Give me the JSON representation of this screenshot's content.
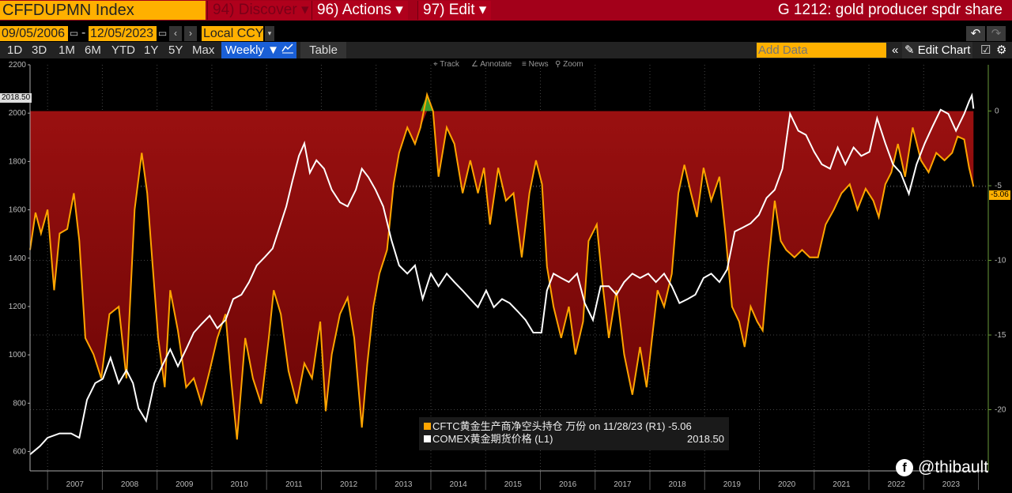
{
  "header": {
    "ticker": "CFFDUPMN Index",
    "discover": "94) Discover",
    "actions": "96) Actions",
    "edit": "97) Edit",
    "caret": "▾",
    "title": "G 1212: gold producer spdr share"
  },
  "controls": {
    "start_date": "09/05/2006",
    "dash": "-",
    "end_date": "12/05/2023",
    "currency": "Local CCY",
    "prev": "‹",
    "next": "›",
    "undo": "↶",
    "redo": "↷"
  },
  "toolbar": {
    "periods": [
      "1D",
      "3D",
      "1M",
      "6M",
      "YTD",
      "1Y",
      "5Y",
      "Max"
    ],
    "frequency": "Weekly ▼",
    "table": "Table",
    "add_data_placeholder": "Add Data",
    "collapse": "«",
    "edit_chart": "Edit Chart"
  },
  "chart_tools": {
    "track": "Track",
    "annotate": "Annotate",
    "news": "News",
    "zoom": "Zoom"
  },
  "watermark": "@thibault",
  "colors": {
    "cftc": "#ffa500",
    "gold": "#ffffff",
    "fill": "#8a0a0a",
    "positive": "#3a9a2a",
    "accent": "#ffb000"
  },
  "chart_data": {
    "type": "line",
    "x_axis": {
      "type": "year",
      "range": [
        2006.68,
        2023.92
      ],
      "tick_labels": [
        "2007",
        "2008",
        "2009",
        "2010",
        "2011",
        "2012",
        "2013",
        "2014",
        "2015",
        "2016",
        "2017",
        "2018",
        "2019",
        "2020",
        "2021",
        "2022",
        "2023"
      ]
    },
    "left_axis": {
      "range": [
        520,
        2200
      ],
      "tick_labels": [
        "2200",
        "2000",
        "1800",
        "1600",
        "1400",
        "1200",
        "1000",
        "800",
        "600"
      ],
      "ticks": [
        2200,
        2000,
        1800,
        1600,
        1400,
        1200,
        1000,
        800,
        600
      ]
    },
    "right_axis": {
      "range": [
        -24.1,
        3.1
      ],
      "tick_labels": [
        "0",
        "-5",
        "-10",
        "-15",
        "-20"
      ],
      "ticks": [
        0,
        -5,
        -10,
        -15,
        -20
      ]
    },
    "legend": {
      "cftc": "CFTC黄金生产商净空头持仓 万份 on 11/28/23 (R1)",
      "cftc_value": "-5.06",
      "gold": "COMEX黄金期货价格 (L1)",
      "gold_value": "2018.50"
    },
    "last_labels": {
      "gold": "2018.50",
      "cftc": "-5.06"
    },
    "series": [
      {
        "name": "CFTC gold producer net short (10k contracts)",
        "axis": "right",
        "points": [
          [
            2006.68,
            -9.3
          ],
          [
            2006.78,
            -6.8
          ],
          [
            2006.88,
            -8.2
          ],
          [
            2007.0,
            -6.6
          ],
          [
            2007.12,
            -12
          ],
          [
            2007.22,
            -8.2
          ],
          [
            2007.36,
            -7.9
          ],
          [
            2007.48,
            -5.5
          ],
          [
            2007.58,
            -8.7
          ],
          [
            2007.69,
            -15.2
          ],
          [
            2007.84,
            -16.3
          ],
          [
            2007.98,
            -17.9
          ],
          [
            2008.13,
            -13.6
          ],
          [
            2008.3,
            -13.1
          ],
          [
            2008.44,
            -17.9
          ],
          [
            2008.59,
            -6.6
          ],
          [
            2008.72,
            -2.8
          ],
          [
            2008.82,
            -5.5
          ],
          [
            2008.92,
            -10.4
          ],
          [
            2009.02,
            -15.2
          ],
          [
            2009.14,
            -18.5
          ],
          [
            2009.24,
            -12
          ],
          [
            2009.38,
            -14.7
          ],
          [
            2009.53,
            -18.5
          ],
          [
            2009.67,
            -17.9
          ],
          [
            2009.81,
            -19.6
          ],
          [
            2009.96,
            -17.4
          ],
          [
            2010.1,
            -15.2
          ],
          [
            2010.25,
            -13.6
          ],
          [
            2010.35,
            -17.9
          ],
          [
            2010.46,
            -22
          ],
          [
            2010.61,
            -15.2
          ],
          [
            2010.75,
            -17.9
          ],
          [
            2010.9,
            -19.6
          ],
          [
            2011.04,
            -15.2
          ],
          [
            2011.13,
            -12
          ],
          [
            2011.26,
            -13.6
          ],
          [
            2011.4,
            -17.4
          ],
          [
            2011.55,
            -19.6
          ],
          [
            2011.69,
            -16.9
          ],
          [
            2011.83,
            -17.9
          ],
          [
            2011.98,
            -14.1
          ],
          [
            2012.08,
            -20.1
          ],
          [
            2012.19,
            -16.3
          ],
          [
            2012.34,
            -13.6
          ],
          [
            2012.48,
            -12.5
          ],
          [
            2012.6,
            -15.2
          ],
          [
            2012.74,
            -21.2
          ],
          [
            2012.84,
            -16.9
          ],
          [
            2012.95,
            -13.1
          ],
          [
            2013.06,
            -10.9
          ],
          [
            2013.2,
            -9.3
          ],
          [
            2013.32,
            -4.9
          ],
          [
            2013.42,
            -2.8
          ],
          [
            2013.57,
            -1.1
          ],
          [
            2013.71,
            -2.2
          ],
          [
            2013.81,
            -1.1
          ],
          [
            2013.93,
            1.1
          ],
          [
            2014.04,
            0
          ],
          [
            2014.14,
            -4.4
          ],
          [
            2014.29,
            -1.1
          ],
          [
            2014.43,
            -2.2
          ],
          [
            2014.58,
            -5.5
          ],
          [
            2014.72,
            -3.3
          ],
          [
            2014.86,
            -5.5
          ],
          [
            2014.97,
            -3.8
          ],
          [
            2015.08,
            -7.6
          ],
          [
            2015.23,
            -3.8
          ],
          [
            2015.37,
            -6
          ],
          [
            2015.51,
            -5.5
          ],
          [
            2015.66,
            -9.8
          ],
          [
            2015.8,
            -5.5
          ],
          [
            2015.92,
            -3.3
          ],
          [
            2016.03,
            -4.9
          ],
          [
            2016.12,
            -10.4
          ],
          [
            2016.24,
            -13.1
          ],
          [
            2016.38,
            -15.2
          ],
          [
            2016.52,
            -13.1
          ],
          [
            2016.64,
            -16.3
          ],
          [
            2016.78,
            -14.1
          ],
          [
            2016.88,
            -8.7
          ],
          [
            2017.03,
            -7.6
          ],
          [
            2017.13,
            -11.4
          ],
          [
            2017.25,
            -15.2
          ],
          [
            2017.39,
            -12
          ],
          [
            2017.53,
            -16.3
          ],
          [
            2017.68,
            -19
          ],
          [
            2017.82,
            -15.8
          ],
          [
            2017.94,
            -18.5
          ],
          [
            2018.04,
            -15.2
          ],
          [
            2018.14,
            -12
          ],
          [
            2018.26,
            -13.1
          ],
          [
            2018.4,
            -10.9
          ],
          [
            2018.52,
            -5.5
          ],
          [
            2018.63,
            -3.6
          ],
          [
            2018.75,
            -5.5
          ],
          [
            2018.86,
            -7.1
          ],
          [
            2018.98,
            -3.8
          ],
          [
            2019.12,
            -6
          ],
          [
            2019.27,
            -4.4
          ],
          [
            2019.38,
            -8.2
          ],
          [
            2019.5,
            -13.1
          ],
          [
            2019.63,
            -14.1
          ],
          [
            2019.73,
            -15.8
          ],
          [
            2019.84,
            -13.1
          ],
          [
            2019.96,
            -14.1
          ],
          [
            2020.06,
            -14.7
          ],
          [
            2020.16,
            -10.4
          ],
          [
            2020.28,
            -6
          ],
          [
            2020.39,
            -8.7
          ],
          [
            2020.49,
            -9.3
          ],
          [
            2020.64,
            -9.8
          ],
          [
            2020.78,
            -9.3
          ],
          [
            2020.92,
            -9.8
          ],
          [
            2021.07,
            -9.8
          ],
          [
            2021.21,
            -7.6
          ],
          [
            2021.36,
            -6.6
          ],
          [
            2021.5,
            -5.5
          ],
          [
            2021.65,
            -4.9
          ],
          [
            2021.79,
            -6.6
          ],
          [
            2021.94,
            -5.2
          ],
          [
            2022.08,
            -6
          ],
          [
            2022.18,
            -7.1
          ],
          [
            2022.3,
            -4.9
          ],
          [
            2022.41,
            -4.1
          ],
          [
            2022.53,
            -2.2
          ],
          [
            2022.66,
            -4.4
          ],
          [
            2022.8,
            -1.1
          ],
          [
            2022.95,
            -3.3
          ],
          [
            2023.09,
            -4.1
          ],
          [
            2023.23,
            -2.8
          ],
          [
            2023.38,
            -3.3
          ],
          [
            2023.52,
            -2.8
          ],
          [
            2023.62,
            -1.7
          ],
          [
            2023.74,
            -1.9
          ],
          [
            2023.83,
            -3.8
          ],
          [
            2023.91,
            -5.06
          ]
        ]
      },
      {
        "name": "COMEX gold futures price",
        "axis": "left",
        "points": [
          [
            2006.68,
            588
          ],
          [
            2006.86,
            622
          ],
          [
            2007.0,
            657
          ],
          [
            2007.22,
            675
          ],
          [
            2007.43,
            675
          ],
          [
            2007.58,
            657
          ],
          [
            2007.72,
            814
          ],
          [
            2007.87,
            883
          ],
          [
            2008.01,
            901
          ],
          [
            2008.15,
            988
          ],
          [
            2008.3,
            883
          ],
          [
            2008.44,
            936
          ],
          [
            2008.56,
            883
          ],
          [
            2008.66,
            779
          ],
          [
            2008.8,
            727
          ],
          [
            2008.95,
            883
          ],
          [
            2009.09,
            953
          ],
          [
            2009.24,
            1023
          ],
          [
            2009.38,
            953
          ],
          [
            2009.53,
            1023
          ],
          [
            2009.67,
            1092
          ],
          [
            2009.81,
            1127
          ],
          [
            2009.96,
            1162
          ],
          [
            2010.1,
            1110
          ],
          [
            2010.25,
            1144
          ],
          [
            2010.39,
            1231
          ],
          [
            2010.54,
            1249
          ],
          [
            2010.68,
            1301
          ],
          [
            2010.82,
            1370
          ],
          [
            2010.97,
            1405
          ],
          [
            2011.11,
            1440
          ],
          [
            2011.26,
            1544
          ],
          [
            2011.36,
            1614
          ],
          [
            2011.47,
            1718
          ],
          [
            2011.59,
            1823
          ],
          [
            2011.69,
            1875
          ],
          [
            2011.79,
            1753
          ],
          [
            2011.91,
            1805
          ],
          [
            2012.05,
            1770
          ],
          [
            2012.19,
            1683
          ],
          [
            2012.34,
            1631
          ],
          [
            2012.48,
            1614
          ],
          [
            2012.63,
            1683
          ],
          [
            2012.74,
            1770
          ],
          [
            2012.86,
            1735
          ],
          [
            2012.99,
            1683
          ],
          [
            2013.13,
            1614
          ],
          [
            2013.28,
            1475
          ],
          [
            2013.42,
            1370
          ],
          [
            2013.57,
            1336
          ],
          [
            2013.71,
            1370
          ],
          [
            2013.85,
            1231
          ],
          [
            2014.0,
            1336
          ],
          [
            2014.14,
            1284
          ],
          [
            2014.29,
            1336
          ],
          [
            2014.43,
            1301
          ],
          [
            2014.58,
            1266
          ],
          [
            2014.72,
            1231
          ],
          [
            2014.86,
            1197
          ],
          [
            2015.01,
            1266
          ],
          [
            2015.15,
            1197
          ],
          [
            2015.3,
            1231
          ],
          [
            2015.44,
            1214
          ],
          [
            2015.59,
            1179
          ],
          [
            2015.73,
            1144
          ],
          [
            2015.87,
            1092
          ],
          [
            2016.02,
            1092
          ],
          [
            2016.12,
            1266
          ],
          [
            2016.24,
            1336
          ],
          [
            2016.38,
            1318
          ],
          [
            2016.52,
            1301
          ],
          [
            2016.67,
            1336
          ],
          [
            2016.81,
            1214
          ],
          [
            2016.96,
            1144
          ],
          [
            2017.1,
            1284
          ],
          [
            2017.25,
            1284
          ],
          [
            2017.39,
            1249
          ],
          [
            2017.53,
            1301
          ],
          [
            2017.68,
            1336
          ],
          [
            2017.82,
            1318
          ],
          [
            2017.97,
            1336
          ],
          [
            2018.11,
            1301
          ],
          [
            2018.26,
            1336
          ],
          [
            2018.4,
            1284
          ],
          [
            2018.54,
            1214
          ],
          [
            2018.69,
            1231
          ],
          [
            2018.83,
            1249
          ],
          [
            2018.98,
            1318
          ],
          [
            2019.12,
            1336
          ],
          [
            2019.27,
            1301
          ],
          [
            2019.41,
            1353
          ],
          [
            2019.55,
            1510
          ],
          [
            2019.7,
            1527
          ],
          [
            2019.84,
            1544
          ],
          [
            2019.99,
            1579
          ],
          [
            2020.13,
            1649
          ],
          [
            2020.28,
            1683
          ],
          [
            2020.42,
            1770
          ],
          [
            2020.56,
            1997
          ],
          [
            2020.71,
            1927
          ],
          [
            2020.85,
            1910
          ],
          [
            2021.0,
            1840
          ],
          [
            2021.14,
            1788
          ],
          [
            2021.29,
            1770
          ],
          [
            2021.43,
            1858
          ],
          [
            2021.57,
            1788
          ],
          [
            2021.72,
            1858
          ],
          [
            2021.86,
            1823
          ],
          [
            2022.01,
            1840
          ],
          [
            2022.15,
            1979
          ],
          [
            2022.3,
            1875
          ],
          [
            2022.44,
            1788
          ],
          [
            2022.58,
            1753
          ],
          [
            2022.73,
            1666
          ],
          [
            2022.87,
            1788
          ],
          [
            2023.02,
            1875
          ],
          [
            2023.16,
            1944
          ],
          [
            2023.31,
            2014
          ],
          [
            2023.45,
            1997
          ],
          [
            2023.59,
            1927
          ],
          [
            2023.74,
            1997
          ],
          [
            2023.83,
            2049
          ],
          [
            2023.88,
            2073
          ],
          [
            2023.91,
            2018.5
          ]
        ]
      }
    ]
  }
}
